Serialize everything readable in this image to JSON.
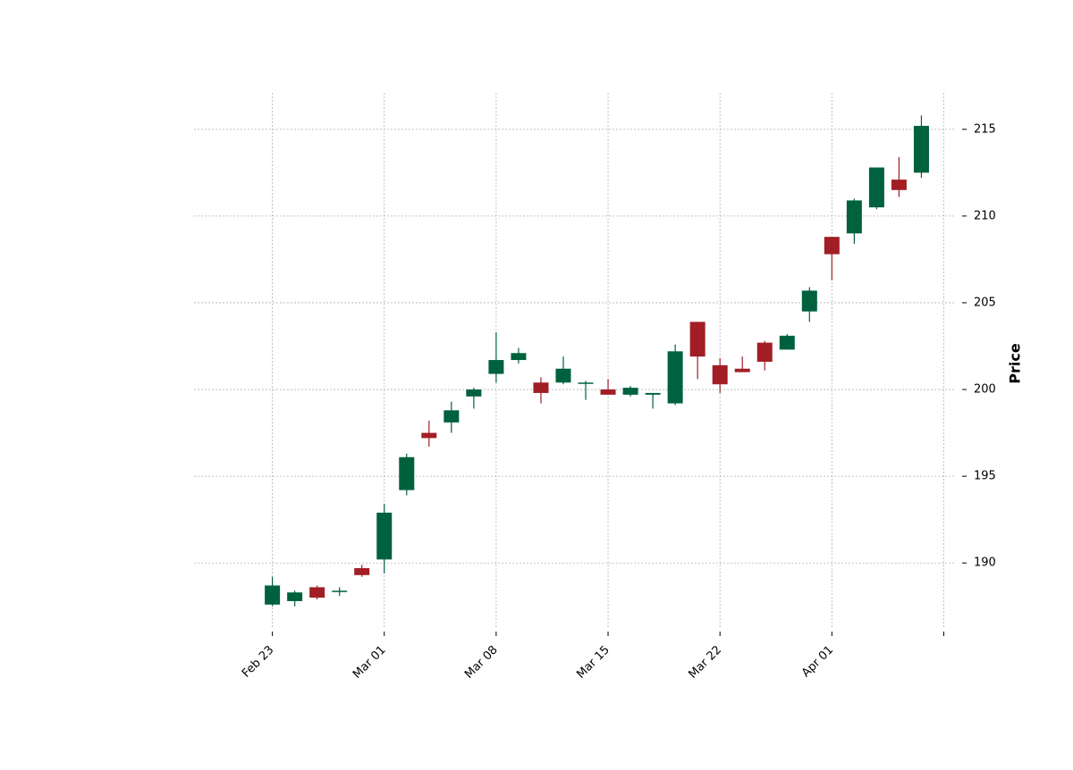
{
  "chart_data": {
    "type": "candlestick",
    "ylabel": "Price",
    "ylim": [
      186.2,
      217.1
    ],
    "xlim": [
      -3.5,
      30.5
    ],
    "grid": true,
    "colors": {
      "up": "#00613e",
      "down": "#a11e25",
      "grid": "#b0b0b0"
    },
    "yticks": [
      190,
      195,
      200,
      205,
      210,
      215
    ],
    "xticks": [
      {
        "pos": 0,
        "label": "Feb 23"
      },
      {
        "pos": 5,
        "label": "Mar 01"
      },
      {
        "pos": 10,
        "label": "Mar 08"
      },
      {
        "pos": 15,
        "label": "Mar 15"
      },
      {
        "pos": 20,
        "label": "Mar 22"
      },
      {
        "pos": 25,
        "label": "Apr 01"
      },
      {
        "pos": 30,
        "label": ""
      }
    ],
    "candles": [
      {
        "o": 187.6,
        "h": 189.2,
        "l": 187.5,
        "c": 188.7
      },
      {
        "o": 187.8,
        "h": 188.4,
        "l": 187.5,
        "c": 188.3
      },
      {
        "o": 188.6,
        "h": 188.7,
        "l": 187.9,
        "c": 188.0
      },
      {
        "o": 188.4,
        "h": 188.6,
        "l": 188.1,
        "c": 188.4
      },
      {
        "o": 189.7,
        "h": 189.9,
        "l": 189.2,
        "c": 189.3
      },
      {
        "o": 190.2,
        "h": 193.4,
        "l": 189.4,
        "c": 192.9
      },
      {
        "o": 194.2,
        "h": 196.3,
        "l": 193.9,
        "c": 196.1
      },
      {
        "o": 197.5,
        "h": 198.2,
        "l": 196.7,
        "c": 197.2
      },
      {
        "o": 198.1,
        "h": 199.3,
        "l": 197.5,
        "c": 198.8
      },
      {
        "o": 199.6,
        "h": 200.1,
        "l": 198.9,
        "c": 200.0
      },
      {
        "o": 200.9,
        "h": 203.3,
        "l": 200.4,
        "c": 201.7
      },
      {
        "o": 201.7,
        "h": 202.4,
        "l": 201.5,
        "c": 202.1
      },
      {
        "o": 200.4,
        "h": 200.7,
        "l": 199.2,
        "c": 199.8
      },
      {
        "o": 200.4,
        "h": 201.9,
        "l": 200.3,
        "c": 201.2
      },
      {
        "o": 200.4,
        "h": 200.5,
        "l": 199.4,
        "c": 200.4
      },
      {
        "o": 200.0,
        "h": 200.6,
        "l": 199.7,
        "c": 199.7
      },
      {
        "o": 199.7,
        "h": 200.2,
        "l": 199.6,
        "c": 200.1
      },
      {
        "o": 199.7,
        "h": 199.8,
        "l": 198.9,
        "c": 199.8
      },
      {
        "o": 199.2,
        "h": 202.6,
        "l": 199.1,
        "c": 202.2
      },
      {
        "o": 203.9,
        "h": 203.9,
        "l": 200.6,
        "c": 201.9
      },
      {
        "o": 201.4,
        "h": 201.8,
        "l": 199.8,
        "c": 200.3
      },
      {
        "o": 201.2,
        "h": 201.9,
        "l": 201.0,
        "c": 201.0
      },
      {
        "o": 202.7,
        "h": 202.8,
        "l": 201.1,
        "c": 201.6
      },
      {
        "o": 202.3,
        "h": 203.2,
        "l": 202.3,
        "c": 203.1
      },
      {
        "o": 204.5,
        "h": 205.9,
        "l": 203.9,
        "c": 205.7
      },
      {
        "o": 208.8,
        "h": 208.8,
        "l": 206.3,
        "c": 207.8
      },
      {
        "o": 209.0,
        "h": 211.0,
        "l": 208.4,
        "c": 210.9
      },
      {
        "o": 210.5,
        "h": 212.8,
        "l": 210.4,
        "c": 212.8
      },
      {
        "o": 212.1,
        "h": 213.4,
        "l": 211.1,
        "c": 211.5
      },
      {
        "o": 212.5,
        "h": 215.8,
        "l": 212.2,
        "c": 215.2
      }
    ]
  }
}
